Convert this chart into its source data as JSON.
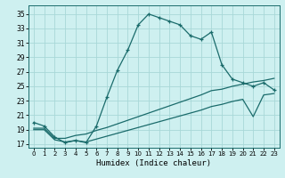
{
  "xlabel": "Humidex (Indice chaleur)",
  "bg_color": "#cef0f0",
  "line_color": "#1a6b6b",
  "grid_color": "#a8d8d8",
  "x_ticks": [
    0,
    1,
    2,
    3,
    4,
    5,
    6,
    7,
    8,
    9,
    10,
    11,
    12,
    13,
    14,
    15,
    16,
    17,
    18,
    19,
    20,
    21,
    22,
    23
  ],
  "y_ticks": [
    17,
    19,
    21,
    23,
    25,
    27,
    29,
    31,
    33,
    35
  ],
  "ylim": [
    16.5,
    36.2
  ],
  "xlim": [
    -0.5,
    23.5
  ],
  "line1_x": [
    0,
    1,
    2,
    3,
    4,
    5,
    6,
    7,
    8,
    9,
    10,
    11,
    12,
    13,
    14,
    15,
    16,
    17,
    18,
    19,
    20,
    21,
    22,
    23
  ],
  "line1_y": [
    20.0,
    19.5,
    18.0,
    17.2,
    17.5,
    17.2,
    19.5,
    23.5,
    27.2,
    30.0,
    33.5,
    35.0,
    34.5,
    34.0,
    33.5,
    32.0,
    31.5,
    32.5,
    28.0,
    26.0,
    25.5,
    25.0,
    25.5,
    24.5
  ],
  "line2_x": [
    0,
    1,
    2,
    3,
    4,
    5,
    6,
    7,
    8,
    9,
    10,
    11,
    12,
    13,
    14,
    15,
    16,
    17,
    18,
    19,
    20,
    21,
    22,
    23
  ],
  "line2_y": [
    19.2,
    19.2,
    17.8,
    17.8,
    18.2,
    18.4,
    18.9,
    19.3,
    19.8,
    20.3,
    20.8,
    21.3,
    21.8,
    22.3,
    22.8,
    23.3,
    23.8,
    24.4,
    24.6,
    25.0,
    25.3,
    25.6,
    25.8,
    26.1
  ],
  "line3_x": [
    0,
    1,
    2,
    3,
    4,
    5,
    6,
    7,
    8,
    9,
    10,
    11,
    12,
    13,
    14,
    15,
    16,
    17,
    18,
    19,
    20,
    21,
    22,
    23
  ],
  "line3_y": [
    19.0,
    19.0,
    17.6,
    17.3,
    17.5,
    17.3,
    17.7,
    18.1,
    18.5,
    18.9,
    19.3,
    19.7,
    20.1,
    20.5,
    20.9,
    21.3,
    21.7,
    22.2,
    22.5,
    22.9,
    23.2,
    20.8,
    23.8,
    24.0
  ],
  "marker": "+",
  "markersize": 3.5,
  "linewidth": 0.9
}
